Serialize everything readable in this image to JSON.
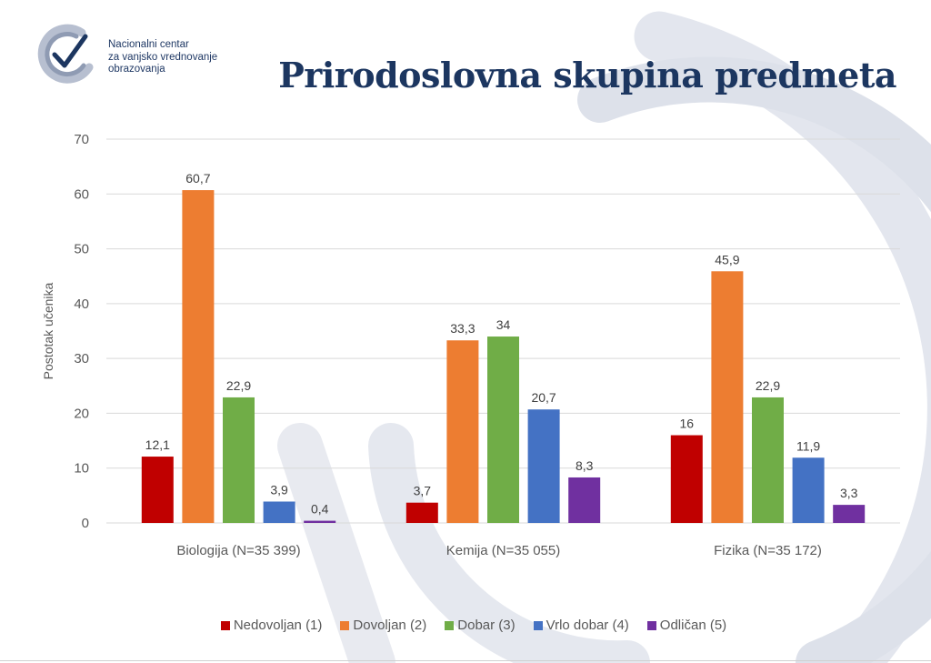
{
  "header": {
    "org_lines": [
      "Nacionalni centar",
      "za vanjsko vrednovanje",
      "obrazovanja"
    ],
    "title": "Prirodoslovna skupina predmeta"
  },
  "colors": {
    "title": "#1c3660",
    "series": [
      "#c00000",
      "#ed7d31",
      "#70ad47",
      "#4472c4",
      "#7030a0"
    ],
    "decor": "#dde1ea"
  },
  "chart_data": {
    "type": "bar",
    "title": "Prirodoslovna skupina predmeta",
    "xlabel": "",
    "ylabel": "Postotak učenika",
    "ylim": [
      0,
      70
    ],
    "yticks": [
      0,
      10,
      20,
      30,
      40,
      50,
      60,
      70
    ],
    "grid": true,
    "legend_position": "bottom",
    "categories": [
      "Biologija (N=35 399)",
      "Kemija  (N=35 055)",
      "Fizika (N=35 172)"
    ],
    "series": [
      {
        "name": "Nedovoljan (1)",
        "values": [
          12.1,
          3.7,
          16
        ],
        "labels": [
          "12,1",
          "3,7",
          "16"
        ]
      },
      {
        "name": "Dovoljan (2)",
        "values": [
          60.7,
          33.3,
          45.9
        ],
        "labels": [
          "60,7",
          "33,3",
          "45,9"
        ]
      },
      {
        "name": "Dobar (3)",
        "values": [
          22.9,
          34,
          22.9
        ],
        "labels": [
          "22,9",
          "34",
          "22,9"
        ]
      },
      {
        "name": "Vrlo dobar (4)",
        "values": [
          3.9,
          20.7,
          11.9
        ],
        "labels": [
          "3,9",
          "20,7",
          "11,9"
        ]
      },
      {
        "name": "Odličan (5)",
        "values": [
          0.4,
          8.3,
          3.3
        ],
        "labels": [
          "0,4",
          "8,3",
          "3,3"
        ]
      }
    ]
  }
}
